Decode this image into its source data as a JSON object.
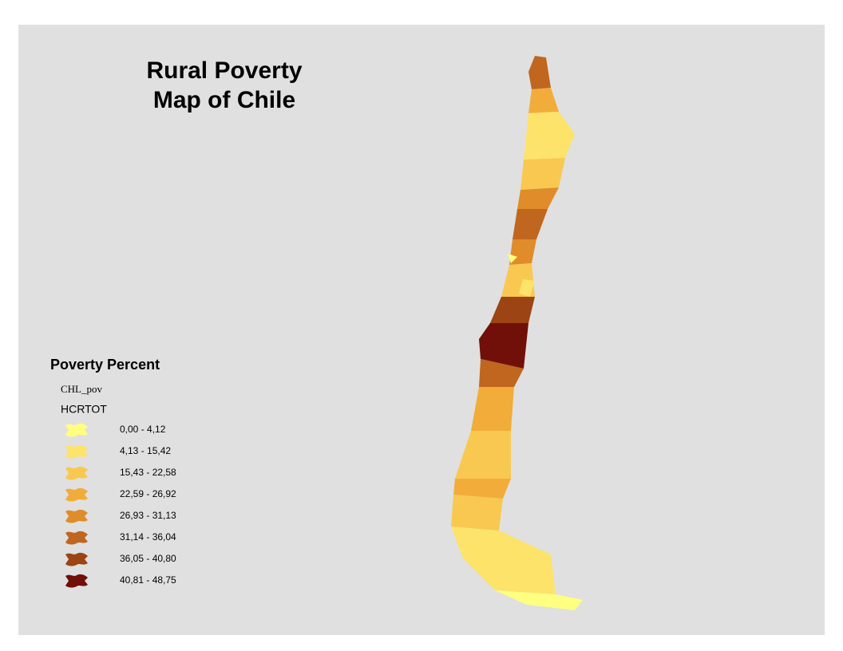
{
  "map": {
    "title_line1": "Rural Poverty",
    "title_line2": "Map of Chile"
  },
  "legend": {
    "title": "Poverty Percent",
    "layer": "CHL_pov",
    "field": "HCRTOT",
    "items": [
      {
        "label": "0,00 - 4,12",
        "color": "#ffff80"
      },
      {
        "label": "4,13 - 15,42",
        "color": "#fde36a"
      },
      {
        "label": "15,43 - 22,58",
        "color": "#f9c850"
      },
      {
        "label": "22,59 - 26,92",
        "color": "#f2ac3a"
      },
      {
        "label": "26,93 - 31,13",
        "color": "#e08c2a"
      },
      {
        "label": "31,14 - 36,04",
        "color": "#c0661e"
      },
      {
        "label": "36,05 - 40,80",
        "color": "#9c4414"
      },
      {
        "label": "40,81 - 48,75",
        "color": "#701008"
      }
    ]
  }
}
